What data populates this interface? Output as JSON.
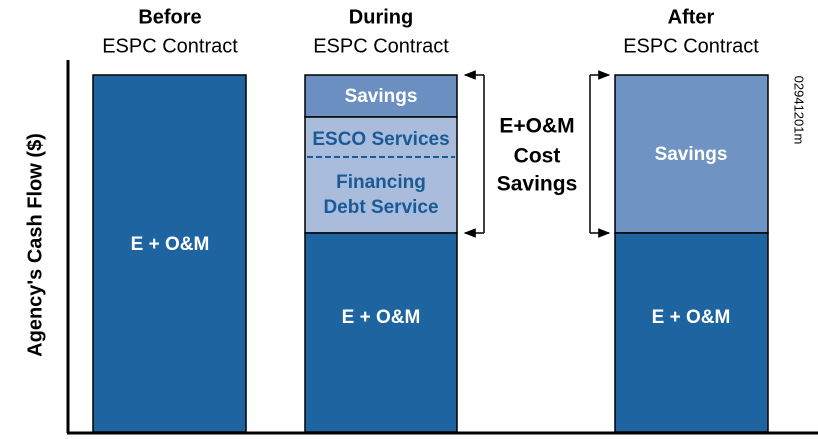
{
  "y_axis_label": "Agency's Cash Flow ($)",
  "figure_id": "02941201m",
  "columns": [
    {
      "title": "Before",
      "subtitle": "ESPC Contract",
      "segments": [
        {
          "lines": [
            "E + O&M"
          ]
        }
      ]
    },
    {
      "title": "During",
      "subtitle": "ESPC Contract",
      "segments": [
        {
          "lines": [
            "Savings"
          ]
        },
        {
          "lines": [
            "ESCO Services"
          ]
        },
        {
          "lines": [
            "Financing",
            "Debt Service"
          ]
        },
        {
          "lines": [
            "E + O&M"
          ]
        }
      ]
    },
    {
      "title": "After",
      "subtitle": "ESPC Contract",
      "segments": [
        {
          "lines": [
            "Savings"
          ]
        },
        {
          "lines": [
            "E + O&M"
          ]
        }
      ]
    }
  ],
  "bracket_label": [
    "E+O&M",
    "Cost",
    "Savings"
  ]
}
